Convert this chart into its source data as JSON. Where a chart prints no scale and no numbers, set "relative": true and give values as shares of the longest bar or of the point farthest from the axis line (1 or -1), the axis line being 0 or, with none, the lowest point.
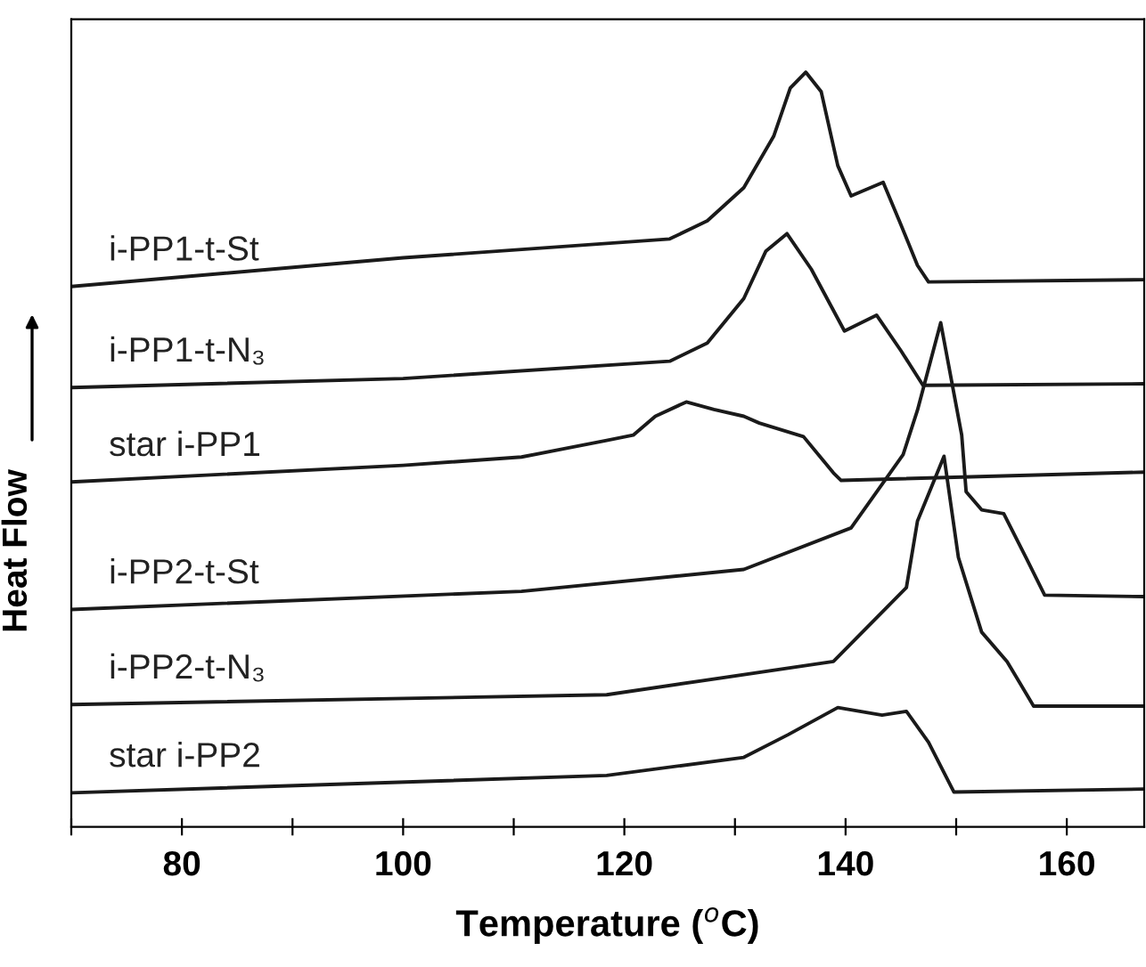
{
  "chart_data": {
    "type": "line",
    "relative": true,
    "xlabel": "Temperature ($^{o}$C)",
    "ylabel": "Heat Flow",
    "legend": false,
    "grid": false,
    "line_style": "solid",
    "marker": "none",
    "xlim": [
      70,
      167
    ],
    "xticks": [
      {
        "value": 70,
        "label": null
      },
      80,
      {
        "value": 90,
        "label": null
      },
      100,
      {
        "value": 110,
        "label": null
      },
      120,
      {
        "value": 130,
        "label": null
      },
      140,
      {
        "value": 150,
        "label": null
      },
      160
    ],
    "series": [
      {
        "name": "i-PP1-t-St",
        "color": "#1a1a1a",
        "x": [
          70,
          100,
          124.1,
          127.5,
          130.8,
          133.5,
          135,
          136.4,
          137.8,
          139.3,
          140.5,
          143.4,
          145,
          146.5,
          147.5,
          167
        ],
        "values": [
          0.716,
          0.754,
          0.779,
          0.803,
          0.847,
          0.915,
          0.979,
          1.0,
          0.974,
          0.876,
          0.836,
          0.854,
          0.798,
          0.744,
          0.722,
          0.725
        ]
      },
      {
        "name": "i-PP1-t-N₃",
        "color": "#1a1a1a",
        "x": [
          70,
          100,
          124.1,
          127.5,
          130.8,
          132.8,
          134.7,
          136.9,
          139.9,
          142.8,
          145,
          147,
          167
        ],
        "values": [
          0.582,
          0.594,
          0.617,
          0.641,
          0.7,
          0.763,
          0.786,
          0.739,
          0.657,
          0.678,
          0.631,
          0.585,
          0.587
        ]
      },
      {
        "name": "star i-PP1",
        "color": "#1a1a1a",
        "x": [
          70,
          100,
          110.7,
          118.4,
          120.8,
          122.8,
          125.6,
          128.1,
          130.8,
          132.2,
          136.2,
          138.9,
          139.6,
          167
        ],
        "values": [
          0.457,
          0.479,
          0.49,
          0.512,
          0.519,
          0.544,
          0.563,
          0.553,
          0.544,
          0.535,
          0.517,
          0.469,
          0.459,
          0.47
        ]
      },
      {
        "name": "i-PP2-t-St",
        "color": "#1a1a1a",
        "x": [
          70,
          110.7,
          130.8,
          140.5,
          145.2,
          146.5,
          148.6,
          150.5,
          150.9,
          152.3,
          154.3,
          156.3,
          158,
          167
        ],
        "values": [
          0.288,
          0.312,
          0.341,
          0.396,
          0.493,
          0.552,
          0.668,
          0.519,
          0.444,
          0.42,
          0.415,
          0.357,
          0.307,
          0.305
        ]
      },
      {
        "name": "i-PP2-t-N₃",
        "color": "#1a1a1a",
        "x": [
          70,
          118.4,
          138.9,
          145.5,
          146.5,
          148.9,
          150.2,
          152.3,
          154.6,
          157,
          167
        ],
        "values": [
          0.162,
          0.175,
          0.219,
          0.317,
          0.405,
          0.491,
          0.357,
          0.258,
          0.219,
          0.16,
          0.16
        ]
      },
      {
        "name": "star i-PP2",
        "color": "#1a1a1a",
        "x": [
          70,
          118.4,
          130.8,
          134.8,
          139.3,
          143.3,
          145.5,
          147.5,
          149.8,
          167
        ],
        "values": [
          0.045,
          0.068,
          0.092,
          0.122,
          0.158,
          0.148,
          0.153,
          0.112,
          0.046,
          0.05
        ]
      }
    ]
  }
}
